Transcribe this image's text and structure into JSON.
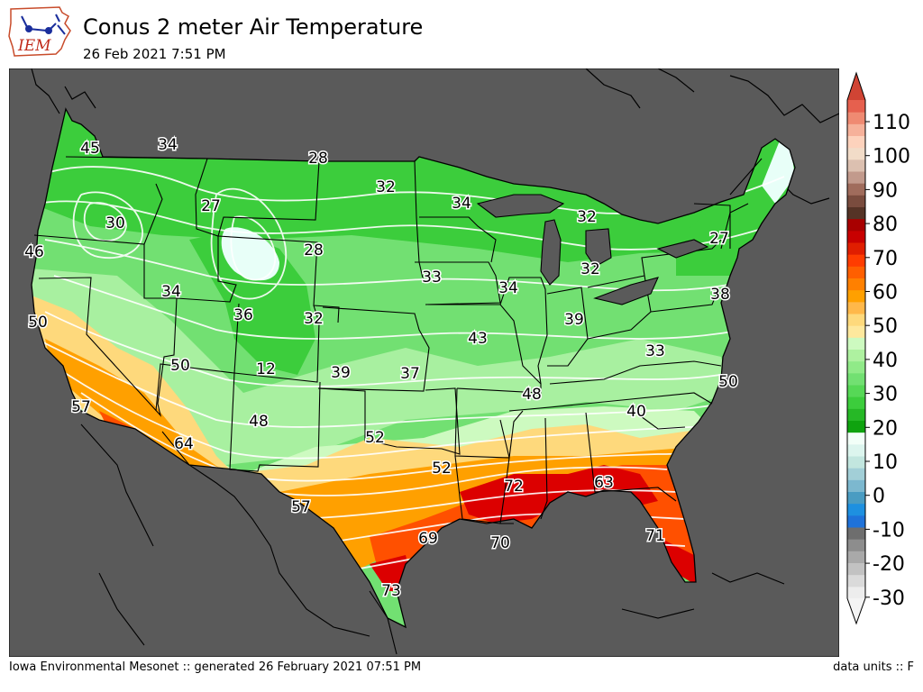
{
  "header": {
    "logo_text": "IEM",
    "title": "Conus 2 meter Air Temperature",
    "subtitle": "26 Feb 2021 7:51 PM"
  },
  "footer": {
    "left": "Iowa Environmental Mesonet :: generated 26 February 2021 07:51 PM",
    "right": "data units :: F"
  },
  "colors": {
    "ocean_and_outside": "#5a5a5a",
    "cold_green": "#3ccd3c",
    "cool_green": "#72e072",
    "mild_green": "#a8f0a0",
    "pale_green": "#cdfac0",
    "yellow": "#fed97c",
    "orange": "#ffa000",
    "orange_red": "#ff5000",
    "red": "#dc0000",
    "snowy_white": "#e8fff8",
    "contour": "#ffffff",
    "border": "#000000"
  },
  "colorbar": {
    "tick_labels": [
      "110",
      "100",
      "90",
      "80",
      "70",
      "60",
      "50",
      "40",
      "30",
      "20",
      "10",
      "0",
      "-10",
      "-20",
      "-30"
    ],
    "bands": [
      "#ededed",
      "#dadada",
      "#c2c2c2",
      "#a9a9a9",
      "#8d8d8d",
      "#6e6e6e",
      "#1f72d9",
      "#1e90e0",
      "#4a9cc2",
      "#7cb8cf",
      "#a2cfd7",
      "#c2e6df",
      "#dcf5ee",
      "#f2fff8",
      "#0fa30f",
      "#26b826",
      "#3ccd3c",
      "#56d856",
      "#72e072",
      "#90ea88",
      "#aef1a0",
      "#cdfac0",
      "#fee89d",
      "#fed97c",
      "#ffb84a",
      "#ffa000",
      "#ff8000",
      "#ff5f00",
      "#ff3c00",
      "#e01e00",
      "#c80000",
      "#a80000",
      "#553326",
      "#7a4c3e",
      "#a06c5c",
      "#c29a8c",
      "#dcc0b0",
      "#f2dcc8",
      "#fdd2bc",
      "#f6b19a",
      "#ef8a72",
      "#e6604e"
    ],
    "over_color": "#d04434",
    "under_color": "#f4f4f4"
  },
  "stations": [
    {
      "name": "western-washington",
      "value": "45"
    },
    {
      "name": "northern-idaho",
      "value": "34"
    },
    {
      "name": "northern-montana",
      "value": "28"
    },
    {
      "name": "western-montana",
      "value": "27"
    },
    {
      "name": "north-dakota",
      "value": "32"
    },
    {
      "name": "minnesota",
      "value": "34"
    },
    {
      "name": "upper-michigan",
      "value": "32"
    },
    {
      "name": "vermont",
      "value": "27"
    },
    {
      "name": "eastern-oregon",
      "value": "30"
    },
    {
      "name": "oregon-coast",
      "value": "46"
    },
    {
      "name": "eastern-wyoming",
      "value": "28"
    },
    {
      "name": "southern-idaho",
      "value": "34"
    },
    {
      "name": "nebraska",
      "value": "33"
    },
    {
      "name": "iowa",
      "value": "34"
    },
    {
      "name": "lower-michigan",
      "value": "32"
    },
    {
      "name": "new-jersey",
      "value": "38"
    },
    {
      "name": "northern-california",
      "value": "50"
    },
    {
      "name": "utah",
      "value": "36"
    },
    {
      "name": "northern-colorado",
      "value": "32"
    },
    {
      "name": "indiana",
      "value": "39"
    },
    {
      "name": "missouri",
      "value": "43"
    },
    {
      "name": "west-virginia",
      "value": "33"
    },
    {
      "name": "southern-nevada",
      "value": "50"
    },
    {
      "name": "southern-colorado",
      "value": "12"
    },
    {
      "name": "eastern-colorado",
      "value": "39"
    },
    {
      "name": "kansas",
      "value": "37"
    },
    {
      "name": "kentucky",
      "value": "48"
    },
    {
      "name": "virginia-coast",
      "value": "50"
    },
    {
      "name": "southern-california",
      "value": "57"
    },
    {
      "name": "new-mexico",
      "value": "48"
    },
    {
      "name": "texas-panhandle",
      "value": "52"
    },
    {
      "name": "north-carolina",
      "value": "40"
    },
    {
      "name": "arizona",
      "value": "64"
    },
    {
      "name": "northeast-texas",
      "value": "52"
    },
    {
      "name": "mississippi",
      "value": "72"
    },
    {
      "name": "georgia",
      "value": "63"
    },
    {
      "name": "west-texas",
      "value": "57"
    },
    {
      "name": "southeast-texas",
      "value": "69"
    },
    {
      "name": "louisiana",
      "value": "70"
    },
    {
      "name": "florida",
      "value": "71"
    },
    {
      "name": "south-texas",
      "value": "73"
    }
  ]
}
